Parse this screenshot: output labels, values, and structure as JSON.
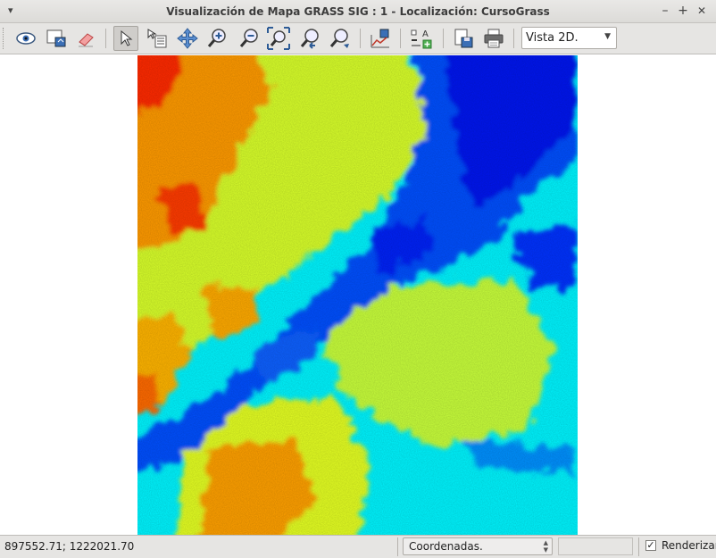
{
  "window": {
    "title": "Visualización de Mapa GRASS SIG : 1  - Localización: CursoGrass",
    "menu_glyph": "▾",
    "minimize_glyph": "–",
    "maximize_glyph": "+",
    "close_glyph": "✕"
  },
  "toolbar": {
    "tools": [
      {
        "name": "display-map-icon",
        "tooltip": ""
      },
      {
        "name": "render-map-icon",
        "tooltip": ""
      },
      {
        "name": "erase-icon",
        "tooltip": ""
      },
      {
        "name": "pointer-icon",
        "active": true
      },
      {
        "name": "query-icon"
      },
      {
        "name": "pan-icon"
      },
      {
        "name": "zoom-in-icon"
      },
      {
        "name": "zoom-out-icon"
      },
      {
        "name": "zoom-extent-icon"
      },
      {
        "name": "zoom-back-icon"
      },
      {
        "name": "zoom-options-icon"
      },
      {
        "name": "analyze-icon"
      },
      {
        "name": "overlay-icon"
      },
      {
        "name": "save-image-icon"
      },
      {
        "name": "print-icon"
      }
    ],
    "view_select": {
      "value": "Vista 2D."
    }
  },
  "map": {
    "colors": {
      "red": "#ff1a00",
      "orange": "#ff8c00",
      "yellow": "#ffff00",
      "cyan": "#00ffff",
      "blue": "#0040ff",
      "deep_blue": "#0010ee"
    }
  },
  "statusbar": {
    "coordinates": "897552.71; 1222021.70",
    "display_mode": "Coordenadas.",
    "render_checked": true,
    "render_label": "Renderizar"
  }
}
